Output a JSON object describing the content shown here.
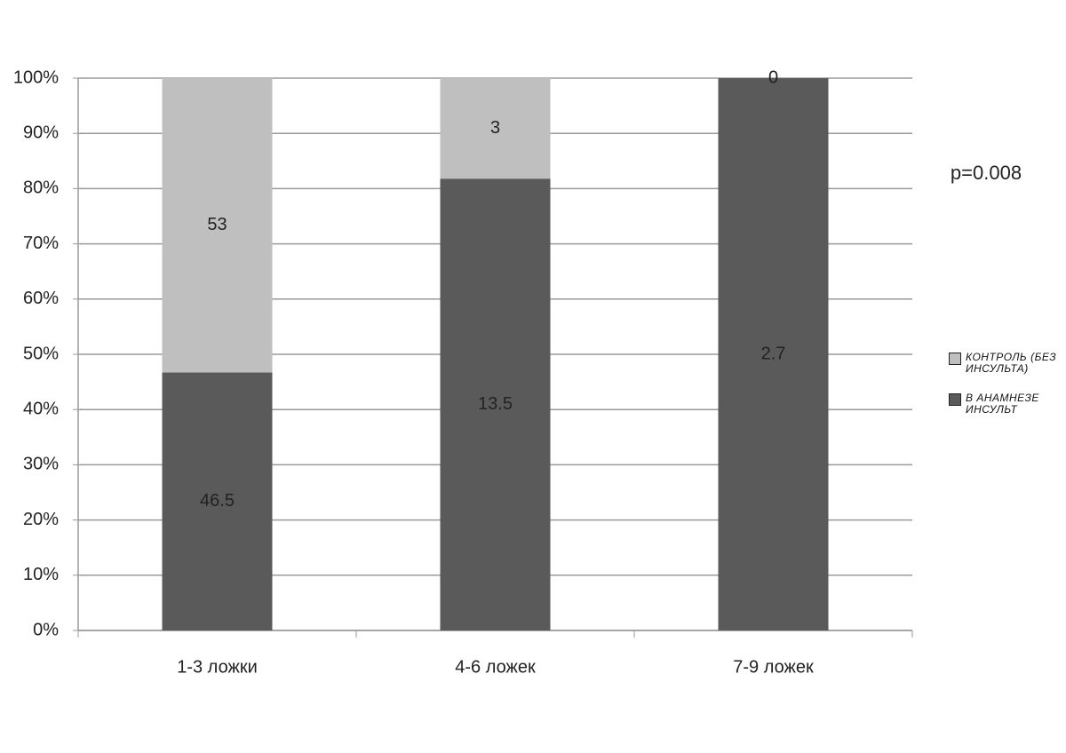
{
  "chart_data": {
    "type": "bar",
    "stacking": "stacked",
    "categories": [
      "1-3 ложки",
      "4-6 ложек",
      "7-9 ложек"
    ],
    "series": [
      {
        "name": "в анамнезе инсульт",
        "color": "#5a5a5a",
        "values": [
          46.7,
          81.8,
          100
        ],
        "counts": [
          46.5,
          13.5,
          2.7
        ]
      },
      {
        "name": "контроль (без инсульта)",
        "color": "#bfbfbf",
        "values": [
          53.3,
          18.2,
          0
        ],
        "counts": [
          53,
          3,
          0
        ]
      }
    ],
    "ylim": [
      0,
      100
    ],
    "yticks": [
      {
        "value": 0,
        "label": "0%"
      },
      {
        "value": 10,
        "label": "10%"
      },
      {
        "value": 20,
        "label": "20%"
      },
      {
        "value": 30,
        "label": "30%"
      },
      {
        "value": 40,
        "label": "40%"
      },
      {
        "value": 50,
        "label": "50%"
      },
      {
        "value": 60,
        "label": "60%"
      },
      {
        "value": 70,
        "label": "70%"
      },
      {
        "value": 80,
        "label": "80%"
      },
      {
        "value": 90,
        "label": "90%"
      },
      {
        "value": 100,
        "label": "100%"
      }
    ],
    "grid": true,
    "annotation": "p=0.008"
  }
}
